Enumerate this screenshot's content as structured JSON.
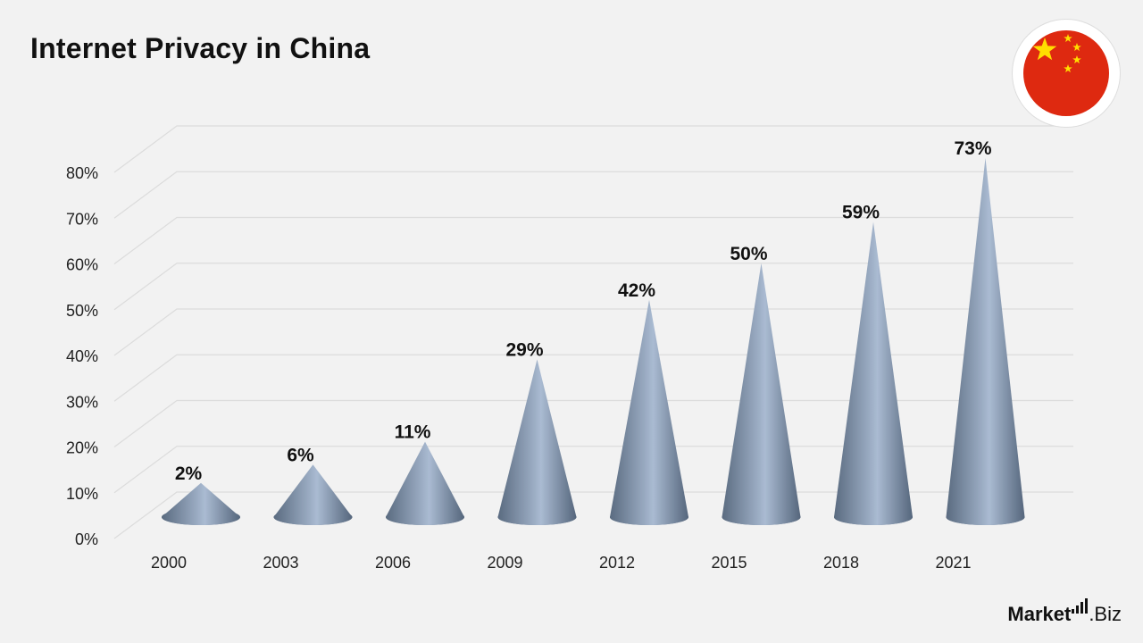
{
  "colors": {
    "background": "#f2f2f2",
    "cone_dark": "#5a6b80",
    "cone_light": "#aabbd2",
    "grid": "#dcdcdc",
    "flag_red": "#de2910",
    "flag_star": "#ffde00"
  },
  "chart_data": {
    "type": "bar",
    "mark": "cone",
    "title": "Internet Privacy in China",
    "categories": [
      "2000",
      "2003",
      "2006",
      "2009",
      "2012",
      "2015",
      "2018",
      "2021"
    ],
    "values": [
      2,
      6,
      11,
      29,
      42,
      50,
      59,
      73
    ],
    "value_labels": [
      "2%",
      "6%",
      "11%",
      "29%",
      "42%",
      "50%",
      "59%",
      "73%"
    ],
    "ylim": [
      0,
      80
    ],
    "yticks": [
      0,
      10,
      20,
      30,
      40,
      50,
      60,
      70,
      80
    ],
    "ytick_labels": [
      "0%",
      "10%",
      "20%",
      "30%",
      "40%",
      "50%",
      "60%",
      "70%",
      "80%"
    ],
    "grid": true,
    "legend": "none",
    "perspective": "3d"
  },
  "flag": {
    "icon": "china-flag-icon"
  },
  "brand": {
    "part1": "Market",
    "part2": ".Biz"
  }
}
